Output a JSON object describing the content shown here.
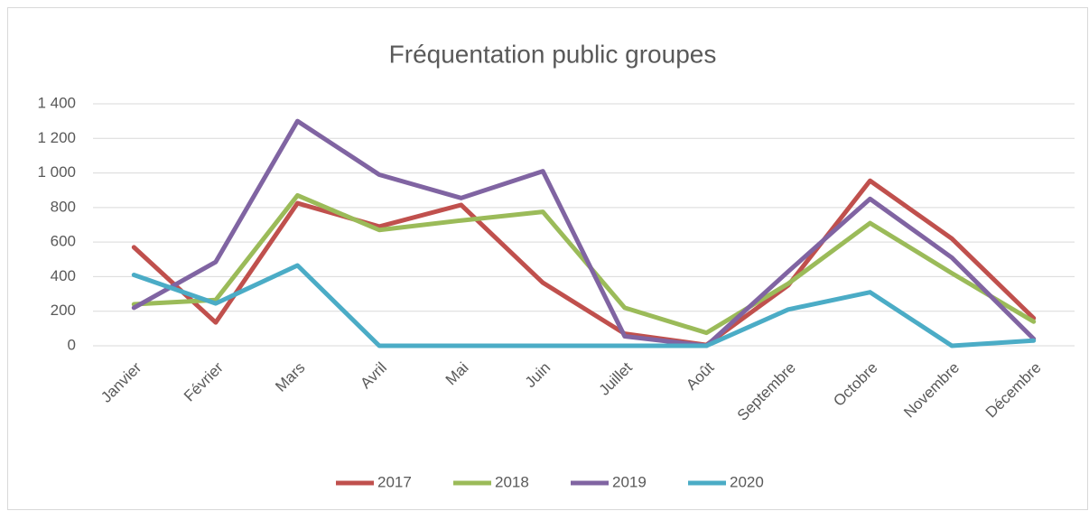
{
  "chart_data": {
    "type": "line",
    "title": "Fréquentation public groupes",
    "categories": [
      "Janvier",
      "Février",
      "Mars",
      "Avril",
      "Mai",
      "Juin",
      "Juillet",
      "Août",
      "Septembre",
      "Octobre",
      "Novembre",
      "Décembre"
    ],
    "series": [
      {
        "name": "2017",
        "color": "#c0504d",
        "values": [
          570,
          135,
          825,
          690,
          815,
          365,
          70,
          5,
          350,
          955,
          620,
          160
        ]
      },
      {
        "name": "2018",
        "color": "#9bbb59",
        "values": [
          240,
          265,
          870,
          670,
          725,
          775,
          220,
          75,
          360,
          710,
          420,
          140
        ]
      },
      {
        "name": "2019",
        "color": "#8064a2",
        "values": [
          220,
          485,
          1300,
          990,
          855,
          1010,
          55,
          0,
          430,
          850,
          510,
          40
        ]
      },
      {
        "name": "2020",
        "color": "#4bacc6",
        "values": [
          410,
          245,
          465,
          0,
          0,
          0,
          0,
          0,
          210,
          310,
          0,
          30
        ]
      }
    ],
    "ylim": [
      0,
      1400
    ],
    "yticks": [
      0,
      200,
      400,
      600,
      800,
      {
        "value": 1000,
        "label": "1 000"
      },
      {
        "value": 1200,
        "label": "1 200"
      },
      {
        "value": 1400,
        "label": "1 400"
      }
    ],
    "grid": true,
    "legend": "bottom"
  }
}
